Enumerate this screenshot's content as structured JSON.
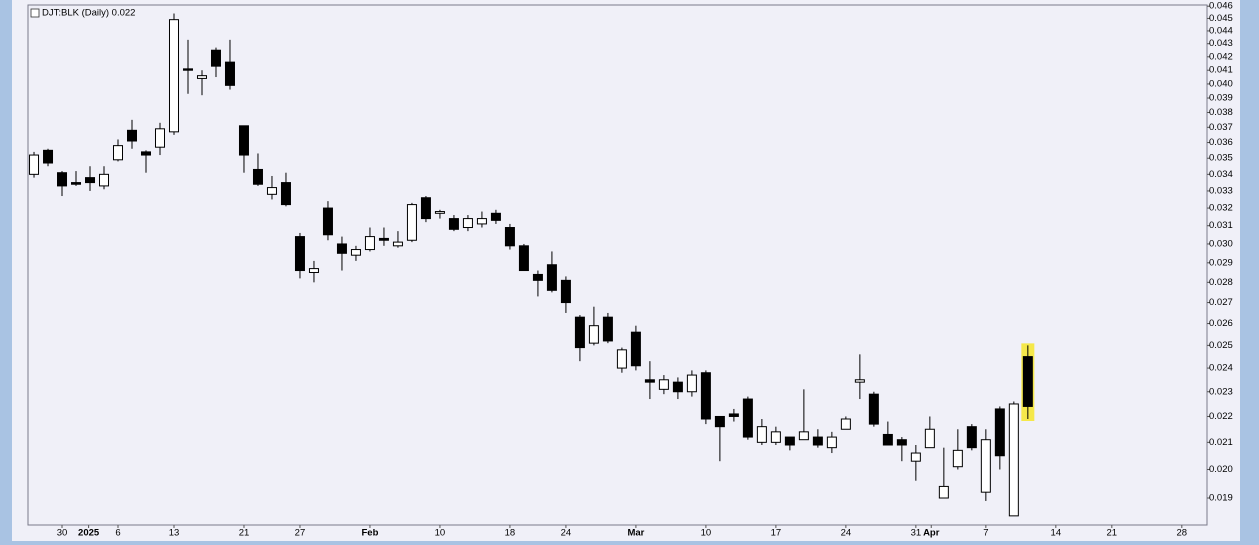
{
  "chart_data": {
    "type": "candlestick",
    "title": "DJT:BLK (Daily) 0.022",
    "log_scale": true,
    "grid": false,
    "up_color": "#ffffff",
    "down_color": "#000000",
    "highlight_color": "#f5e84a",
    "highlight_index": 71,
    "xlim": [
      -0.43,
      83.8
    ],
    "ylim": [
      0.0181,
      0.0461
    ],
    "yticks": [
      0.019,
      {
        "value": 0.02,
        "label": "0.020"
      },
      0.021,
      0.022,
      0.023,
      0.024,
      0.025,
      0.026,
      0.027,
      0.028,
      0.029,
      {
        "value": 0.03,
        "label": "0.030"
      },
      0.031,
      0.032,
      0.033,
      0.034,
      0.035,
      0.036,
      0.037,
      0.038,
      0.039,
      {
        "value": 0.04,
        "label": "0.040"
      },
      0.041,
      0.042,
      0.043,
      0.044,
      0.045,
      0.046
    ],
    "xticks": [
      {
        "value": 2,
        "label": "30"
      },
      {
        "value": 3.9,
        "label": "2025",
        "bold": true
      },
      {
        "value": 6,
        "label": "6"
      },
      {
        "value": 10,
        "label": "13"
      },
      {
        "value": 15,
        "label": "21"
      },
      {
        "value": 19,
        "label": "27"
      },
      {
        "value": 24,
        "label": "Feb",
        "bold": true
      },
      {
        "value": 29,
        "label": "10"
      },
      {
        "value": 34,
        "label": "18"
      },
      {
        "value": 38,
        "label": "24"
      },
      {
        "value": 43,
        "label": "Mar",
        "bold": true
      },
      {
        "value": 48,
        "label": "10"
      },
      {
        "value": 53,
        "label": "17"
      },
      {
        "value": 58,
        "label": "24"
      },
      {
        "value": 63,
        "label": "31"
      },
      {
        "value": 64.1,
        "label": "Apr",
        "bold": true
      },
      {
        "value": 68,
        "label": "7"
      },
      {
        "value": 73,
        "label": "14"
      },
      {
        "value": 77,
        "label": "21"
      },
      {
        "value": 82,
        "label": "28"
      }
    ],
    "open": [
      0.034,
      0.0355,
      0.0341,
      0.0335,
      0.0338,
      0.0333,
      0.0349,
      0.0368,
      0.0354,
      0.0357,
      0.0367,
      0.0411,
      0.0404,
      0.0425,
      0.0416,
      0.0371,
      0.0343,
      0.0328,
      0.0335,
      0.0304,
      0.0285,
      0.032,
      0.03,
      0.0294,
      0.0297,
      0.0303,
      0.0299,
      0.0302,
      0.0326,
      0.0317,
      0.0314,
      0.0309,
      0.0311,
      0.0317,
      0.0309,
      0.0299,
      0.0284,
      0.0289,
      0.0281,
      0.0263,
      0.0251,
      0.0263,
      0.024,
      0.0256,
      0.0235,
      0.0231,
      0.0234,
      0.023,
      0.0238,
      0.022,
      0.0221,
      0.0227,
      0.021,
      0.021,
      0.0212,
      0.0211,
      0.0212,
      0.0208,
      0.0215,
      0.0234,
      0.0229,
      0.0213,
      0.0211,
      0.0203,
      0.0208,
      0.019,
      0.0201,
      0.0216,
      0.0192,
      0.0223,
      0.0184,
      0.0245
    ],
    "high": [
      0.0354,
      0.0356,
      0.0342,
      0.0342,
      0.0345,
      0.0345,
      0.0362,
      0.0375,
      0.0355,
      0.0373,
      0.0454,
      0.0433,
      0.041,
      0.0427,
      0.0433,
      0.0371,
      0.0353,
      0.0339,
      0.0341,
      0.0306,
      0.0291,
      0.0324,
      0.0304,
      0.0299,
      0.0309,
      0.0309,
      0.0307,
      0.0323,
      0.0327,
      0.0319,
      0.0316,
      0.0316,
      0.0318,
      0.0319,
      0.0311,
      0.03,
      0.0286,
      0.0296,
      0.0283,
      0.0264,
      0.0268,
      0.0265,
      0.0249,
      0.0259,
      0.0243,
      0.0237,
      0.0236,
      0.0239,
      0.0239,
      0.022,
      0.0223,
      0.0228,
      0.0219,
      0.0216,
      0.0212,
      0.0231,
      0.0215,
      0.0214,
      0.022,
      0.0246,
      0.023,
      0.0218,
      0.0212,
      0.0209,
      0.022,
      0.0208,
      0.0215,
      0.0217,
      0.0215,
      0.0224,
      0.0226,
      0.025
    ],
    "low": [
      0.0338,
      0.0345,
      0.0327,
      0.0333,
      0.033,
      0.0331,
      0.0348,
      0.0356,
      0.0341,
      0.0352,
      0.0365,
      0.0393,
      0.0392,
      0.0405,
      0.0396,
      0.0341,
      0.0333,
      0.0325,
      0.0321,
      0.0282,
      0.028,
      0.0302,
      0.0286,
      0.0291,
      0.0296,
      0.0299,
      0.0298,
      0.0301,
      0.0312,
      0.0314,
      0.0307,
      0.0307,
      0.0309,
      0.0311,
      0.0297,
      0.0286,
      0.0273,
      0.0275,
      0.0265,
      0.0243,
      0.025,
      0.0251,
      0.0238,
      0.0239,
      0.0227,
      0.0229,
      0.0227,
      0.0228,
      0.0217,
      0.0203,
      0.0218,
      0.0211,
      0.0209,
      0.0209,
      0.0207,
      0.0211,
      0.0208,
      0.0206,
      0.0215,
      0.0227,
      0.0216,
      0.0209,
      0.0203,
      0.0196,
      0.0208,
      0.019,
      0.02,
      0.0207,
      0.0189,
      0.02,
      0.0184,
      0.0219
    ],
    "close": [
      0.0352,
      0.0347,
      0.0333,
      0.0334,
      0.0335,
      0.034,
      0.0358,
      0.0361,
      0.0352,
      0.0369,
      0.0449,
      0.041,
      0.0406,
      0.0413,
      0.0399,
      0.0352,
      0.0334,
      0.0332,
      0.0322,
      0.0286,
      0.0287,
      0.0305,
      0.0295,
      0.0297,
      0.0304,
      0.0302,
      0.0301,
      0.0322,
      0.0314,
      0.0318,
      0.0308,
      0.0314,
      0.0314,
      0.0313,
      0.0299,
      0.0286,
      0.0281,
      0.0276,
      0.027,
      0.0249,
      0.0259,
      0.0252,
      0.0248,
      0.0241,
      0.0234,
      0.0235,
      0.023,
      0.0237,
      0.0219,
      0.0216,
      0.022,
      0.0212,
      0.0216,
      0.0214,
      0.0209,
      0.0214,
      0.0209,
      0.0212,
      0.0219,
      0.0235,
      0.0217,
      0.0209,
      0.0209,
      0.0206,
      0.0215,
      0.0194,
      0.0207,
      0.0208,
      0.0211,
      0.0205,
      0.0225,
      0.0224
    ]
  }
}
